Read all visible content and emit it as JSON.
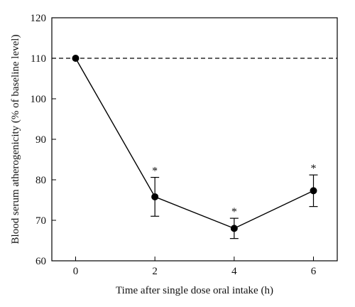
{
  "chart_data": {
    "type": "line",
    "xlabel": "Time after single dose oral intake (h)",
    "ylabel": "Blood serum atherogenicity (% of baseline level)",
    "x": [
      0,
      2,
      4,
      6
    ],
    "xlim": [
      -0.6,
      6.6
    ],
    "ylim": [
      60,
      120
    ],
    "x_ticks": [
      0,
      2,
      4,
      6
    ],
    "y_ticks": [
      60,
      70,
      80,
      90,
      100,
      110,
      120
    ],
    "grid": false,
    "series": [
      {
        "values": [
          110,
          75.8,
          68,
          77.3
        ],
        "error": [
          0,
          4.8,
          2.5,
          3.9
        ],
        "markers": [
          "",
          "*",
          "*",
          "*"
        ],
        "color": "#000000"
      }
    ],
    "reference_line": {
      "y": 110,
      "style": "dashed"
    }
  }
}
